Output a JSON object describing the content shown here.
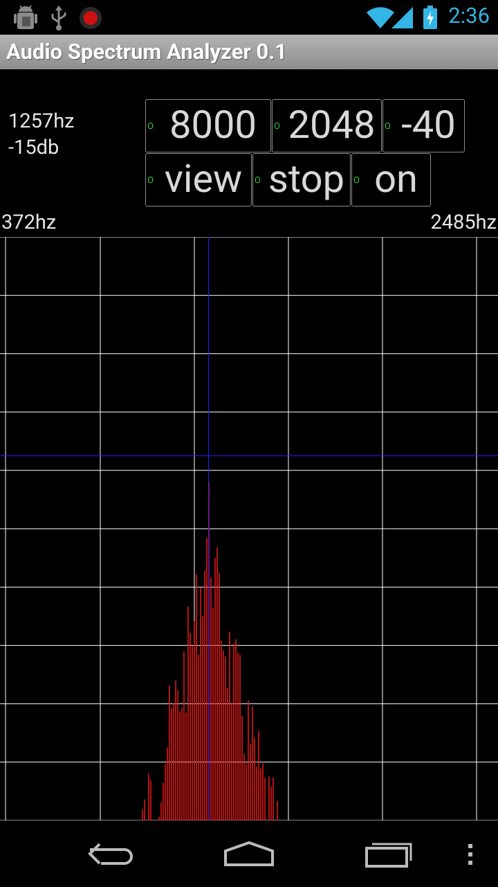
{
  "status_bar": {
    "clock": "2:36",
    "icons": [
      "android-debug-icon",
      "usb-icon",
      "record-icon",
      "wifi-icon",
      "signal-icon",
      "battery-charging-icon"
    ],
    "accent_color": "#33b5e5"
  },
  "app": {
    "title": "Audio Spectrum Analyzer 0.1"
  },
  "readout": {
    "frequency": "1257hz",
    "level": "-15db"
  },
  "controls": {
    "sample_rate": "8000",
    "fft_size": "2048",
    "db_floor": "-40",
    "view": "view",
    "run": "stop",
    "toggle": "on",
    "indicator_color": "#2eea2e"
  },
  "range": {
    "min": "372hz",
    "max": "2485hz"
  },
  "chart_data": {
    "type": "bar",
    "x_unit": "hz",
    "xlim": [
      372,
      2485
    ],
    "ylim_db": [
      -40,
      0
    ],
    "grid": true,
    "cursor": {
      "x": 1257,
      "y": -15
    },
    "bar_color": "#e21a1a",
    "cursor_color": "#2222ff",
    "grid_color": "#ffffff",
    "peak_hz": 1257,
    "peak_db": -15.5
  },
  "nav": {
    "icons": [
      "back-icon",
      "home-icon",
      "recent-apps-icon",
      "menu-icon"
    ]
  }
}
